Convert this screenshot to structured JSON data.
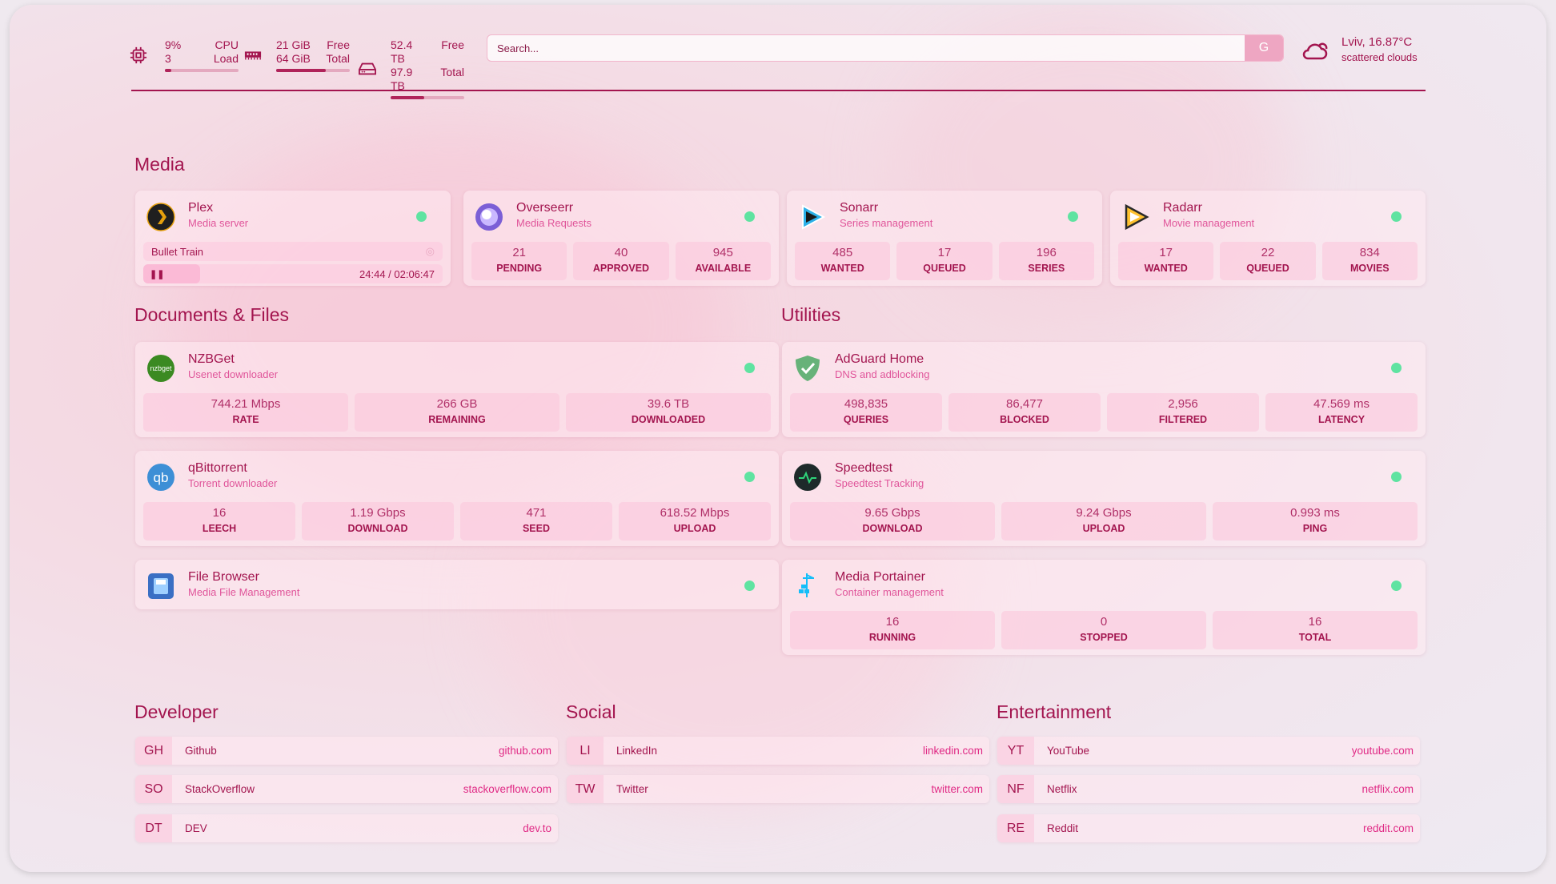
{
  "topbar": {
    "cpu": {
      "icon": "cpu-icon",
      "value1": "9%",
      "value2": "3",
      "label1": "CPU",
      "label2": "Load",
      "percent": 9
    },
    "memory": {
      "icon": "memory-icon",
      "value1": "21 GiB",
      "value2": "64 GiB",
      "label1": "Free",
      "label2": "Total",
      "percent": 67
    },
    "disk": {
      "icon": "disk-icon",
      "value1": "52.4 TB",
      "value2": "97.9 TB",
      "label1": "Free",
      "label2": "Total",
      "percent": 46
    },
    "search": {
      "placeholder": "Search...",
      "button": "G"
    },
    "weather": {
      "icon": "cloud-icon",
      "location_temp": "Lviv, 16.87°C",
      "condition": "scattered clouds"
    }
  },
  "colors": {
    "text": "#a3154f",
    "subtext": "#e0559a",
    "status_online": "#5fe3a1",
    "link": "#e02a85"
  },
  "sections": {
    "media": "Media",
    "docs": "Documents & Files",
    "utilities": "Utilities",
    "developer": "Developer",
    "social": "Social",
    "entertainment": "Entertainment"
  },
  "plex": {
    "title": "Plex",
    "subtitle": "Media server",
    "icon": "plex-icon",
    "now_playing": "Bullet Train",
    "progress": "24:44 / 02:06:47",
    "progress_fraction": 0.195,
    "state": "paused"
  },
  "services": [
    {
      "title": "Overseerr",
      "subtitle": "Media Requests",
      "icon": "overseerr-icon",
      "stats": [
        {
          "v": "21",
          "l": "PENDING"
        },
        {
          "v": "40",
          "l": "APPROVED"
        },
        {
          "v": "945",
          "l": "AVAILABLE"
        }
      ]
    },
    {
      "title": "Sonarr",
      "subtitle": "Series management",
      "icon": "sonarr-icon",
      "stats": [
        {
          "v": "485",
          "l": "WANTED"
        },
        {
          "v": "17",
          "l": "QUEUED"
        },
        {
          "v": "196",
          "l": "SERIES"
        }
      ]
    },
    {
      "title": "Radarr",
      "subtitle": "Movie management",
      "icon": "radarr-icon",
      "stats": [
        {
          "v": "17",
          "l": "WANTED"
        },
        {
          "v": "22",
          "l": "QUEUED"
        },
        {
          "v": "834",
          "l": "MOVIES"
        }
      ]
    },
    {
      "title": "NZBGet",
      "subtitle": "Usenet downloader",
      "icon": "nzbget-icon",
      "stats": [
        {
          "v": "744.21 Mbps",
          "l": "RATE"
        },
        {
          "v": "266 GB",
          "l": "REMAINING"
        },
        {
          "v": "39.6 TB",
          "l": "DOWNLOADED"
        }
      ]
    },
    {
      "title": "qBittorrent",
      "subtitle": "Torrent downloader",
      "icon": "qbittorrent-icon",
      "stats": [
        {
          "v": "16",
          "l": "LEECH"
        },
        {
          "v": "1.19 Gbps",
          "l": "DOWNLOAD"
        },
        {
          "v": "471",
          "l": "SEED"
        },
        {
          "v": "618.52 Mbps",
          "l": "UPLOAD"
        }
      ]
    },
    {
      "title": "File Browser",
      "subtitle": "Media File Management",
      "icon": "file-browser-icon",
      "stats": []
    },
    {
      "title": "AdGuard Home",
      "subtitle": "DNS and adblocking",
      "icon": "adguard-icon",
      "stats": [
        {
          "v": "498,835",
          "l": "QUERIES"
        },
        {
          "v": "86,477",
          "l": "BLOCKED"
        },
        {
          "v": "2,956",
          "l": "FILTERED"
        },
        {
          "v": "47.569 ms",
          "l": "LATENCY"
        }
      ]
    },
    {
      "title": "Speedtest",
      "subtitle": "Speedtest Tracking",
      "icon": "speedtest-icon",
      "stats": [
        {
          "v": "9.65 Gbps",
          "l": "DOWNLOAD"
        },
        {
          "v": "9.24 Gbps",
          "l": "UPLOAD"
        },
        {
          "v": "0.993 ms",
          "l": "PING"
        }
      ]
    },
    {
      "title": "Media Portainer",
      "subtitle": "Container management",
      "icon": "portainer-icon",
      "stats": [
        {
          "v": "16",
          "l": "RUNNING"
        },
        {
          "v": "0",
          "l": "STOPPED"
        },
        {
          "v": "16",
          "l": "TOTAL"
        }
      ]
    }
  ],
  "bookmarks": {
    "developer": [
      {
        "abbr": "GH",
        "name": "Github",
        "url": "github.com"
      },
      {
        "abbr": "SO",
        "name": "StackOverflow",
        "url": "stackoverflow.com"
      },
      {
        "abbr": "DT",
        "name": "DEV",
        "url": "dev.to"
      }
    ],
    "social": [
      {
        "abbr": "LI",
        "name": "LinkedIn",
        "url": "linkedin.com"
      },
      {
        "abbr": "TW",
        "name": "Twitter",
        "url": "twitter.com"
      }
    ],
    "entertainment": [
      {
        "abbr": "YT",
        "name": "YouTube",
        "url": "youtube.com"
      },
      {
        "abbr": "NF",
        "name": "Netflix",
        "url": "netflix.com"
      },
      {
        "abbr": "RE",
        "name": "Reddit",
        "url": "reddit.com"
      }
    ]
  }
}
